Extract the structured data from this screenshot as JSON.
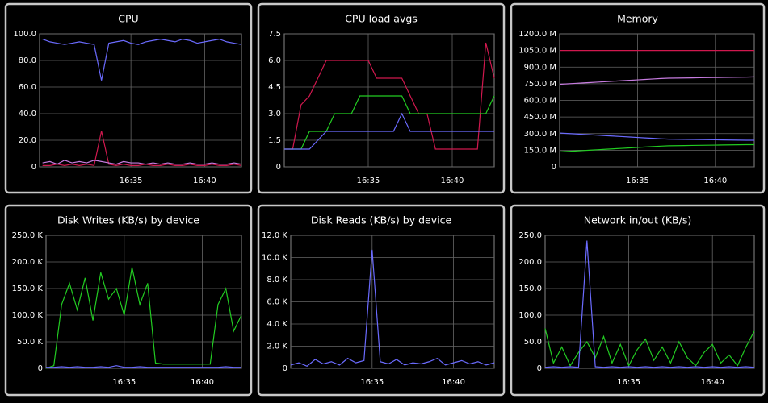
{
  "chart_data": [
    {
      "type": "line",
      "title": "CPU",
      "x": [
        989,
        989.5,
        990,
        990.5,
        991,
        991.5,
        992,
        992.5,
        993,
        993.5,
        994,
        994.5,
        995,
        995.5,
        996,
        996.5,
        997,
        997.5,
        998,
        998.5,
        999,
        999.5,
        1000,
        1000.5,
        1001,
        1001.5,
        1002,
        1002.5
      ],
      "xlim": [
        988.8,
        1002.5
      ],
      "xticks": [
        {
          "value": 995,
          "label": "16:35"
        },
        {
          "value": 1000,
          "label": "16:40"
        }
      ],
      "ylim": [
        0,
        100
      ],
      "yticks": [
        0,
        {
          "value": 20,
          "label": "20.0"
        },
        {
          "value": 40,
          "label": "40.0"
        },
        {
          "value": 60,
          "label": "60.0"
        },
        {
          "value": 80,
          "label": "80.0"
        },
        {
          "value": 100,
          "label": "100.0"
        }
      ],
      "grid": true,
      "series": [
        {
          "color": "#6b6bff",
          "values": [
            96,
            94,
            93,
            92,
            93,
            94,
            93,
            92,
            65,
            93,
            94,
            95,
            93,
            92,
            94,
            95,
            96,
            95,
            94,
            96,
            95,
            93,
            94,
            95,
            96,
            94,
            93,
            92
          ]
        },
        {
          "color": "#d0184e",
          "values": [
            1,
            1,
            2,
            1,
            2,
            1,
            2,
            1,
            27,
            2,
            1,
            2,
            1,
            1,
            2,
            1,
            1,
            2,
            1,
            1,
            2,
            1,
            1,
            2,
            1,
            1,
            2,
            1
          ]
        },
        {
          "color": "#c77ce0",
          "values": [
            3,
            4,
            2,
            5,
            3,
            4,
            3,
            5,
            4,
            3,
            2,
            4,
            3,
            3,
            2,
            3,
            2,
            3,
            2,
            2,
            3,
            2,
            2,
            3,
            2,
            2,
            3,
            2
          ]
        }
      ]
    },
    {
      "type": "line",
      "title": "CPU load avgs",
      "x": [
        990,
        990.5,
        991,
        991.5,
        992,
        992.5,
        993,
        993.5,
        994,
        994.5,
        995,
        995.5,
        996,
        996.5,
        997,
        997.5,
        998,
        998.5,
        999,
        999.5,
        1000,
        1000.5,
        1001,
        1001.5,
        1002,
        1002.5
      ],
      "xlim": [
        990,
        1002.5
      ],
      "xticks": [
        {
          "value": 995,
          "label": "16:35"
        },
        {
          "value": 1000,
          "label": "16:40"
        }
      ],
      "ylim": [
        0,
        7.5
      ],
      "yticks": [
        0,
        1.5,
        {
          "value": 3,
          "label": "3.0"
        },
        4.5,
        {
          "value": 6,
          "label": "6.0"
        },
        7.5
      ],
      "grid": true,
      "series": [
        {
          "color": "#d0184e",
          "values": [
            1,
            1,
            3.5,
            4,
            5,
            6,
            6,
            6,
            6,
            6,
            6,
            5,
            5,
            5,
            5,
            4,
            3,
            3,
            1,
            1,
            1,
            1,
            1,
            1,
            7,
            5
          ]
        },
        {
          "color": "#22cc22",
          "values": [
            1,
            1,
            1,
            2,
            2,
            2,
            3,
            3,
            3,
            4,
            4,
            4,
            4,
            4,
            4,
            3,
            3,
            3,
            3,
            3,
            3,
            3,
            3,
            3,
            3,
            4
          ]
        },
        {
          "color": "#6b6bff",
          "values": [
            1,
            1,
            1,
            1,
            1.5,
            2,
            2,
            2,
            2,
            2,
            2,
            2,
            2,
            2,
            3,
            2,
            2,
            2,
            2,
            2,
            2,
            2,
            2,
            2,
            2,
            2
          ]
        }
      ]
    },
    {
      "type": "line",
      "title": "Memory",
      "x": [
        990,
        990.5,
        991,
        991.5,
        992,
        992.5,
        993,
        993.5,
        994,
        994.5,
        995,
        995.5,
        996,
        996.5,
        997,
        997.5,
        998,
        998.5,
        999,
        999.5,
        1000,
        1000.5,
        1001,
        1001.5,
        1002,
        1002.5
      ],
      "xlim": [
        990,
        1002.5
      ],
      "xticks": [
        {
          "value": 995,
          "label": "16:35"
        },
        {
          "value": 1000,
          "label": "16:40"
        }
      ],
      "ylim": [
        0,
        1200
      ],
      "yticks": [
        0,
        {
          "value": 150,
          "label": "150.0 M"
        },
        {
          "value": 300,
          "label": "300.0 M"
        },
        {
          "value": 450,
          "label": "450.0 M"
        },
        {
          "value": 600,
          "label": "600.0 M"
        },
        {
          "value": 750,
          "label": "750.0 M"
        },
        {
          "value": 900,
          "label": "900.0 M"
        },
        {
          "value": 1050,
          "label": "1050.0 M"
        },
        {
          "value": 1200,
          "label": "1200.0 M"
        }
      ],
      "grid": true,
      "series": [
        {
          "color": "#d0184e",
          "values": [
            1050,
            1050,
            1050,
            1050,
            1050,
            1050,
            1050,
            1050,
            1050,
            1050,
            1050,
            1050,
            1050,
            1050,
            1050,
            1050,
            1050,
            1050,
            1050,
            1050,
            1050,
            1050,
            1050,
            1050,
            1050,
            1050
          ]
        },
        {
          "color": "#c77ce0",
          "values": [
            745,
            749,
            753,
            757,
            761,
            765,
            769,
            773,
            777,
            781,
            785,
            789,
            793,
            797,
            800,
            801,
            802,
            803,
            804,
            805,
            806,
            807,
            808,
            809,
            810,
            812
          ]
        },
        {
          "color": "#6b6bff",
          "values": [
            305,
            301,
            297,
            293,
            289,
            285,
            281,
            277,
            273,
            269,
            265,
            261,
            257,
            253,
            250,
            249,
            248,
            247,
            246,
            245,
            244,
            243,
            242,
            241,
            240,
            240
          ]
        },
        {
          "color": "#22cc22",
          "values": [
            135,
            139,
            143,
            147,
            151,
            155,
            159,
            163,
            167,
            171,
            175,
            179,
            183,
            187,
            190,
            191,
            192,
            193,
            194,
            195,
            196,
            197,
            198,
            199,
            200,
            200
          ]
        }
      ]
    },
    {
      "type": "line",
      "title": "Disk Writes (KB/s) by device",
      "x": [
        990,
        990.5,
        991,
        991.5,
        992,
        992.5,
        993,
        993.5,
        994,
        994.5,
        995,
        995.5,
        996,
        996.5,
        997,
        997.5,
        998,
        998.5,
        999,
        999.5,
        1000,
        1000.5,
        1001,
        1001.5,
        1002,
        1002.5
      ],
      "xlim": [
        990,
        1002.5
      ],
      "xticks": [
        {
          "value": 995,
          "label": "16:35"
        },
        {
          "value": 1000,
          "label": "16:40"
        }
      ],
      "ylim": [
        0,
        250
      ],
      "yticks": [
        0,
        {
          "value": 50,
          "label": "50.0 K"
        },
        {
          "value": 100,
          "label": "100.0 K"
        },
        {
          "value": 150,
          "label": "150.0 K"
        },
        {
          "value": 200,
          "label": "200.0 K"
        },
        {
          "value": 250,
          "label": "250.0 K"
        }
      ],
      "grid": true,
      "series": [
        {
          "color": "#22cc22",
          "values": [
            0,
            5,
            120,
            160,
            110,
            170,
            90,
            180,
            130,
            150,
            100,
            190,
            120,
            160,
            10,
            8,
            8,
            8,
            8,
            8,
            8,
            8,
            120,
            150,
            70,
            100
          ]
        },
        {
          "color": "#6b6bff",
          "values": [
            2,
            2,
            3,
            2,
            3,
            2,
            2,
            3,
            2,
            5,
            2,
            2,
            3,
            2,
            2,
            2,
            2,
            2,
            2,
            2,
            2,
            2,
            2,
            3,
            2,
            2
          ]
        }
      ]
    },
    {
      "type": "line",
      "title": "Disk Reads (KB/s) by device",
      "x": [
        990,
        990.5,
        991,
        991.5,
        992,
        992.5,
        993,
        993.5,
        994,
        994.5,
        995,
        995.5,
        996,
        996.5,
        997,
        997.5,
        998,
        998.5,
        999,
        999.5,
        1000,
        1000.5,
        1001,
        1001.5,
        1002,
        1002.5
      ],
      "xlim": [
        990,
        1002.5
      ],
      "xticks": [
        {
          "value": 995,
          "label": "16:35"
        },
        {
          "value": 1000,
          "label": "16:40"
        }
      ],
      "ylim": [
        0,
        12
      ],
      "yticks": [
        0,
        {
          "value": 2,
          "label": "2.0 K"
        },
        {
          "value": 4,
          "label": "4.0 K"
        },
        {
          "value": 6,
          "label": "6.0 K"
        },
        {
          "value": 8,
          "label": "8.0 K"
        },
        {
          "value": 10,
          "label": "10.0 K"
        },
        {
          "value": 12,
          "label": "12.0 K"
        }
      ],
      "grid": true,
      "series": [
        {
          "color": "#6b6bff",
          "values": [
            0.3,
            0.5,
            0.2,
            0.8,
            0.4,
            0.6,
            0.3,
            0.9,
            0.5,
            0.7,
            10.7,
            0.6,
            0.4,
            0.8,
            0.3,
            0.5,
            0.4,
            0.6,
            0.9,
            0.3,
            0.5,
            0.7,
            0.4,
            0.6,
            0.3,
            0.5
          ]
        }
      ]
    },
    {
      "type": "line",
      "title": "Network in/out (KB/s)",
      "x": [
        990,
        990.5,
        991,
        991.5,
        992,
        992.5,
        993,
        993.5,
        994,
        994.5,
        995,
        995.5,
        996,
        996.5,
        997,
        997.5,
        998,
        998.5,
        999,
        999.5,
        1000,
        1000.5,
        1001,
        1001.5,
        1002,
        1002.5
      ],
      "xlim": [
        990,
        1002.5
      ],
      "xticks": [
        {
          "value": 995,
          "label": "16:35"
        },
        {
          "value": 1000,
          "label": "16:40"
        }
      ],
      "ylim": [
        0,
        250
      ],
      "yticks": [
        0,
        {
          "value": 50,
          "label": "50.0"
        },
        {
          "value": 100,
          "label": "100.0"
        },
        {
          "value": 150,
          "label": "150.0"
        },
        {
          "value": 200,
          "label": "200.0"
        },
        {
          "value": 250,
          "label": "250.0"
        }
      ],
      "grid": true,
      "series": [
        {
          "color": "#22cc22",
          "values": [
            75,
            10,
            40,
            5,
            30,
            50,
            20,
            60,
            10,
            45,
            5,
            35,
            55,
            15,
            40,
            10,
            50,
            20,
            5,
            30,
            45,
            10,
            25,
            5,
            40,
            70
          ]
        },
        {
          "color": "#6b6bff",
          "values": [
            2,
            3,
            2,
            3,
            2,
            240,
            3,
            2,
            3,
            2,
            3,
            2,
            3,
            2,
            3,
            2,
            3,
            2,
            3,
            2,
            3,
            2,
            3,
            2,
            3,
            2
          ]
        }
      ]
    }
  ]
}
